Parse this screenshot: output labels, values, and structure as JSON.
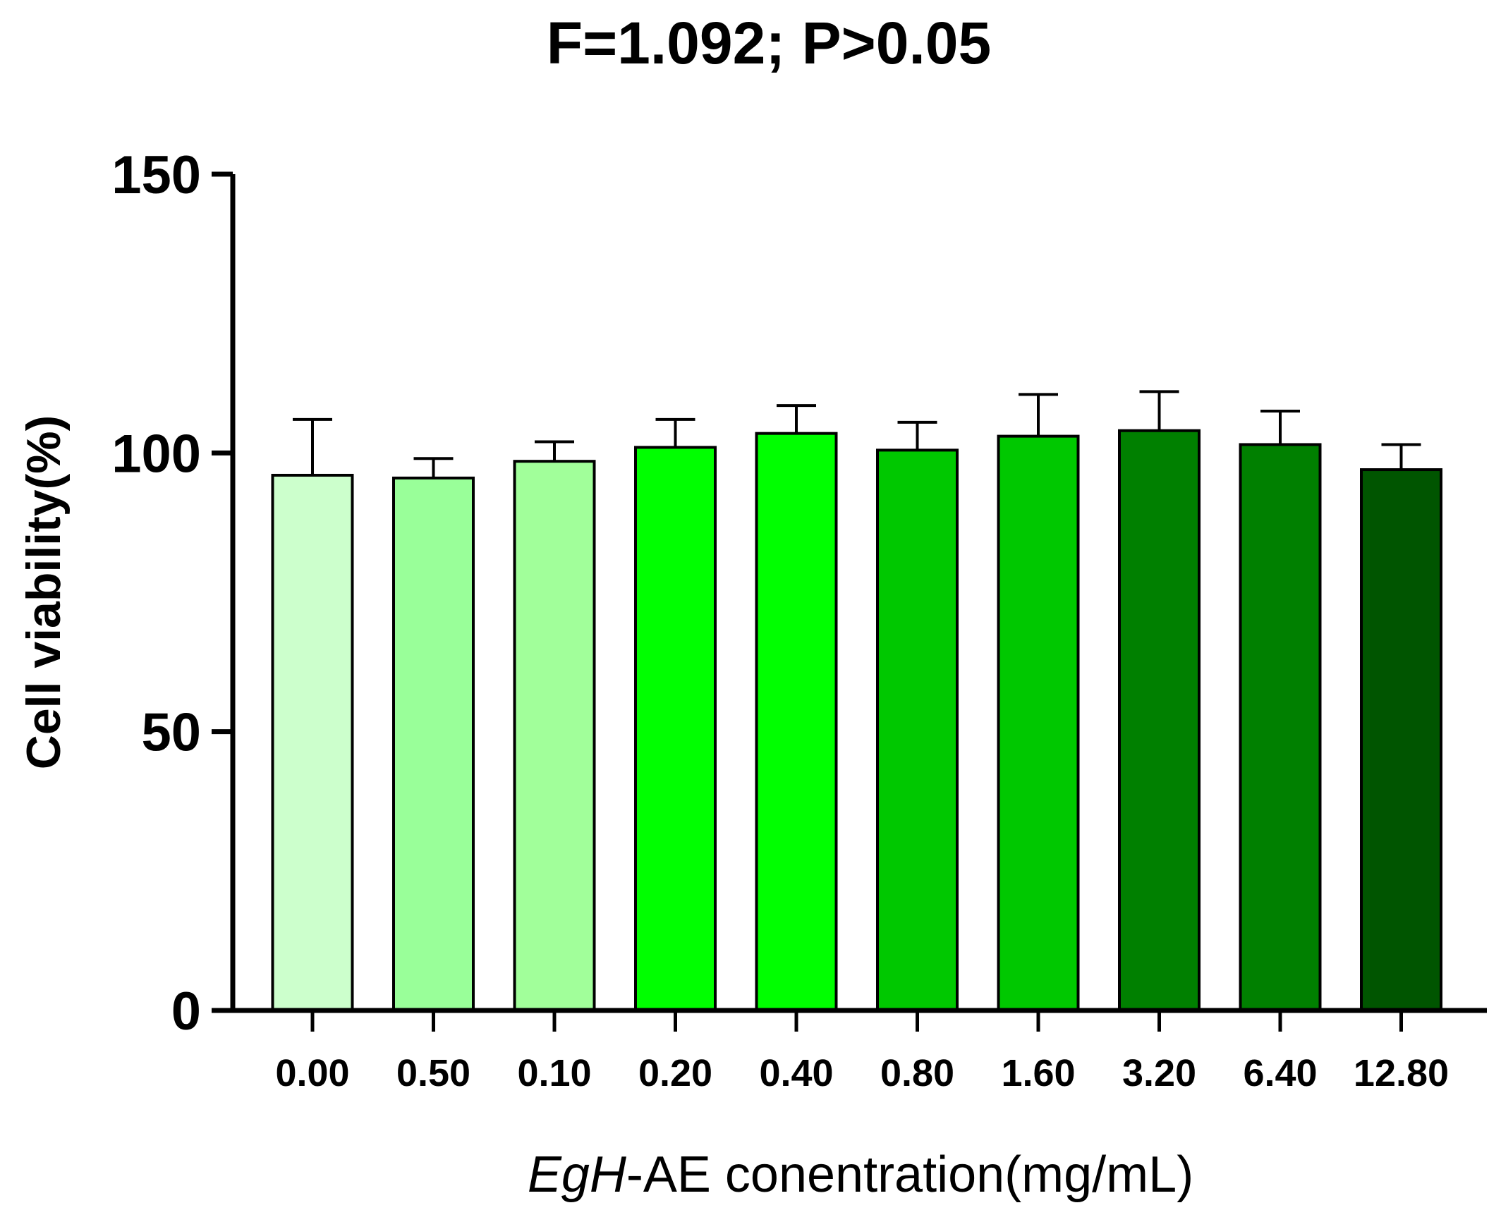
{
  "chart_data": {
    "type": "bar",
    "title": "F=1.092; P>0.05",
    "xlabel_italic": "EgH",
    "xlabel_rest": "-AE conentration(mg/mL)",
    "ylabel": "Cell viability(%)",
    "ylim": [
      0,
      150
    ],
    "yticks": [
      "0",
      "50",
      "100",
      "150"
    ],
    "grid": false,
    "categories": [
      "0.00",
      "0.50",
      "0.10",
      "0.20",
      "0.40",
      "0.80",
      "1.60",
      "3.20",
      "6.40",
      "12.80"
    ],
    "values": [
      96,
      95.5,
      98.5,
      101,
      103.5,
      100.5,
      103,
      104,
      101.5,
      97
    ],
    "errors": [
      10,
      3.5,
      3.5,
      5,
      5,
      5,
      7.5,
      7,
      6,
      4.5
    ],
    "colors": [
      "#ccffcc",
      "#99ff99",
      "#a1ff9a",
      "#00ff00",
      "#00ff00",
      "#00c800",
      "#00c800",
      "#008000",
      "#008000",
      "#005500"
    ]
  }
}
